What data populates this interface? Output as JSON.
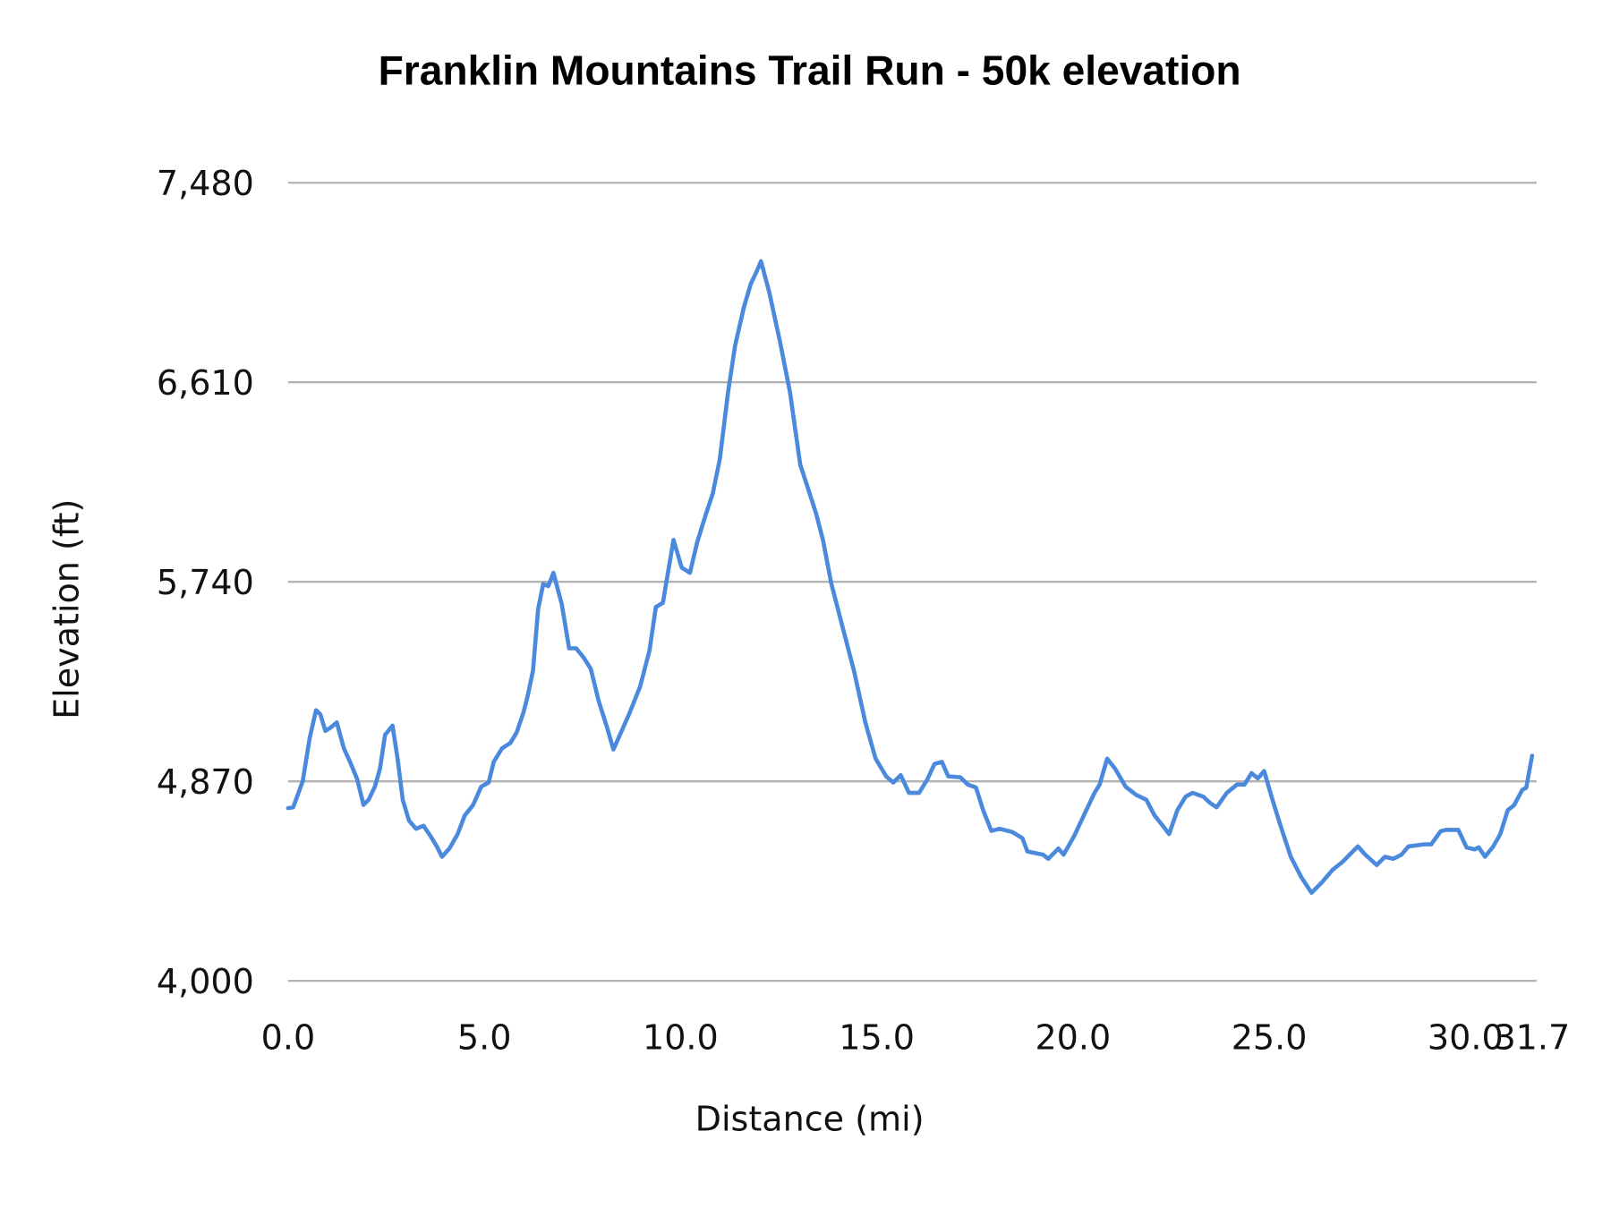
{
  "chart_data": {
    "type": "line",
    "title": "Franklin Mountains Trail Run - 50k elevation",
    "xlabel": "Distance (mi)",
    "ylabel": "Elevation (ft)",
    "xlim": [
      0,
      31.7
    ],
    "ylim": [
      4000,
      7480
    ],
    "x_ticks": [
      "0.0",
      "5.0",
      "10.0",
      "15.0",
      "20.0",
      "25.0",
      "30.0",
      "31.7"
    ],
    "x_tick_values": [
      0,
      5,
      10,
      15,
      20,
      25,
      30,
      31.7
    ],
    "y_ticks": [
      "4,000",
      "4,870",
      "5,740",
      "6,610",
      "7,480"
    ],
    "y_tick_values": [
      4000,
      4870,
      5740,
      6610,
      7480
    ],
    "grid": "horizontal",
    "legend": "none",
    "colors": {
      "line": "#4a89dc",
      "grid": "#b3b3b3"
    },
    "series": [
      {
        "points": [
          [
            0,
            4753
          ],
          [
            0.13,
            4757
          ],
          [
            0.37,
            4870
          ],
          [
            0.55,
            5059
          ],
          [
            0.71,
            5180
          ],
          [
            0.82,
            5162
          ],
          [
            0.95,
            5090
          ],
          [
            1.08,
            5104
          ],
          [
            1.24,
            5127
          ],
          [
            1.42,
            5014
          ],
          [
            1.6,
            4946
          ],
          [
            1.76,
            4879
          ],
          [
            1.92,
            4767
          ],
          [
            2.05,
            4789
          ],
          [
            2.21,
            4847
          ],
          [
            2.34,
            4924
          ],
          [
            2.47,
            5073
          ],
          [
            2.66,
            5113
          ],
          [
            2.79,
            4969
          ],
          [
            2.92,
            4789
          ],
          [
            3.08,
            4699
          ],
          [
            3.26,
            4663
          ],
          [
            3.45,
            4676
          ],
          [
            3.63,
            4631
          ],
          [
            3.79,
            4586
          ],
          [
            3.92,
            4541
          ],
          [
            4.11,
            4577
          ],
          [
            4.32,
            4640
          ],
          [
            4.5,
            4721
          ],
          [
            4.71,
            4766
          ],
          [
            4.92,
            4847
          ],
          [
            5.11,
            4865
          ],
          [
            5.24,
            4955
          ],
          [
            5.45,
            5014
          ],
          [
            5.66,
            5037
          ],
          [
            5.82,
            5082
          ],
          [
            6.0,
            5172
          ],
          [
            6.1,
            5239
          ],
          [
            6.24,
            5352
          ],
          [
            6.37,
            5622
          ],
          [
            6.5,
            5730
          ],
          [
            6.63,
            5721
          ],
          [
            6.76,
            5779
          ],
          [
            6.97,
            5644
          ],
          [
            7.16,
            5450
          ],
          [
            7.34,
            5450
          ],
          [
            7.53,
            5410
          ],
          [
            7.71,
            5361
          ],
          [
            7.92,
            5216
          ],
          [
            8.13,
            5104
          ],
          [
            8.29,
            5009
          ],
          [
            8.5,
            5090
          ],
          [
            8.71,
            5172
          ],
          [
            8.97,
            5284
          ],
          [
            9.21,
            5442
          ],
          [
            9.37,
            5630
          ],
          [
            9.55,
            5648
          ],
          [
            9.68,
            5779
          ],
          [
            9.82,
            5923
          ],
          [
            10.03,
            5802
          ],
          [
            10.24,
            5779
          ],
          [
            10.42,
            5910
          ],
          [
            10.63,
            6026
          ],
          [
            10.82,
            6125
          ],
          [
            11.0,
            6274
          ],
          [
            11.21,
            6566
          ],
          [
            11.39,
            6769
          ],
          [
            11.61,
            6935
          ],
          [
            11.79,
            7039
          ],
          [
            11.95,
            7097
          ],
          [
            12.05,
            7138
          ],
          [
            12.26,
            7003
          ],
          [
            12.53,
            6791
          ],
          [
            12.79,
            6566
          ],
          [
            13.05,
            6251
          ],
          [
            13.24,
            6152
          ],
          [
            13.45,
            6040
          ],
          [
            13.63,
            5923
          ],
          [
            13.84,
            5734
          ],
          [
            14.11,
            5554
          ],
          [
            14.42,
            5351
          ],
          [
            14.71,
            5126
          ],
          [
            14.97,
            4969
          ],
          [
            15.24,
            4892
          ],
          [
            15.42,
            4865
          ],
          [
            15.61,
            4897
          ],
          [
            15.82,
            4820
          ],
          [
            16.08,
            4820
          ],
          [
            16.29,
            4879
          ],
          [
            16.47,
            4946
          ],
          [
            16.66,
            4955
          ],
          [
            16.82,
            4892
          ],
          [
            17.13,
            4888
          ],
          [
            17.32,
            4856
          ],
          [
            17.53,
            4843
          ],
          [
            17.71,
            4744
          ],
          [
            17.92,
            4654
          ],
          [
            18.13,
            4663
          ],
          [
            18.45,
            4649
          ],
          [
            18.71,
            4622
          ],
          [
            18.84,
            4564
          ],
          [
            19.24,
            4550
          ],
          [
            19.37,
            4532
          ],
          [
            19.63,
            4577
          ],
          [
            19.76,
            4550
          ],
          [
            20.03,
            4631
          ],
          [
            20.34,
            4744
          ],
          [
            20.55,
            4820
          ],
          [
            20.68,
            4856
          ],
          [
            20.87,
            4969
          ],
          [
            21.08,
            4924
          ],
          [
            21.34,
            4847
          ],
          [
            21.61,
            4811
          ],
          [
            21.87,
            4789
          ],
          [
            22.08,
            4721
          ],
          [
            22.29,
            4676
          ],
          [
            22.45,
            4640
          ],
          [
            22.66,
            4744
          ],
          [
            22.87,
            4803
          ],
          [
            23.05,
            4820
          ],
          [
            23.32,
            4803
          ],
          [
            23.5,
            4775
          ],
          [
            23.66,
            4757
          ],
          [
            23.92,
            4820
          ],
          [
            24.18,
            4856
          ],
          [
            24.37,
            4856
          ],
          [
            24.55,
            4906
          ],
          [
            24.71,
            4883
          ],
          [
            24.87,
            4915
          ],
          [
            25.08,
            4793
          ],
          [
            25.29,
            4676
          ],
          [
            25.55,
            4541
          ],
          [
            25.82,
            4451
          ],
          [
            26.08,
            4384
          ],
          [
            26.34,
            4429
          ],
          [
            26.61,
            4483
          ],
          [
            26.87,
            4519
          ],
          [
            27.13,
            4564
          ],
          [
            27.26,
            4586
          ],
          [
            27.45,
            4550
          ],
          [
            27.74,
            4505
          ],
          [
            27.95,
            4541
          ],
          [
            28.16,
            4532
          ],
          [
            28.37,
            4550
          ],
          [
            28.55,
            4586
          ],
          [
            28.95,
            4595
          ],
          [
            29.13,
            4595
          ],
          [
            29.37,
            4653
          ],
          [
            29.5,
            4658
          ],
          [
            29.82,
            4658
          ],
          [
            30.03,
            4582
          ],
          [
            30.24,
            4573
          ],
          [
            30.34,
            4582
          ],
          [
            30.5,
            4541
          ],
          [
            30.71,
            4586
          ],
          [
            30.89,
            4640
          ],
          [
            31.08,
            4744
          ],
          [
            31.24,
            4766
          ],
          [
            31.45,
            4833
          ],
          [
            31.55,
            4842
          ],
          [
            31.7,
            4982
          ]
        ]
      }
    ]
  }
}
